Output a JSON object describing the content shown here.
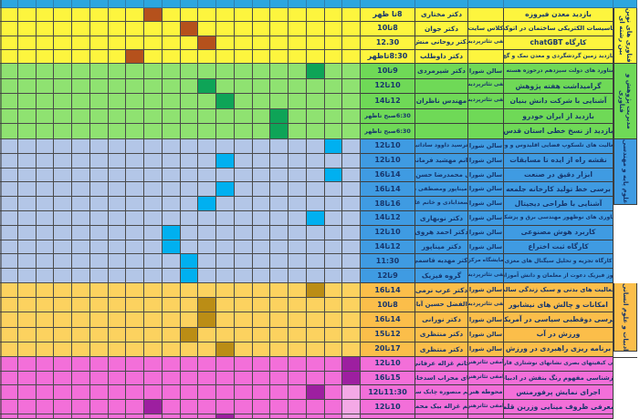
{
  "app": {
    "type": "schedule-spreadsheet",
    "language": "fa",
    "direction": "rtl"
  },
  "header": {
    "bg": "#2CA6DF"
  },
  "grid": {
    "columns": 20
  },
  "layout_colors": {
    "line": "#4a4a4a",
    "text": "#16356b",
    "edge": "#ffffff"
  },
  "sections": [
    {
      "label": "فناوری های نوین بین رشته ای",
      "colors": {
        "grid": "#FDF53E",
        "panel": "#FDF53E",
        "hl": "#B5511C"
      },
      "rows": [
        {
          "title": "بازدید معدن فیروزه",
          "location": "",
          "presenter": "دکتر مختاری",
          "time": "8تا ظهر",
          "highlights": [
            {
              "col": 8,
              "shade": "dark"
            }
          ]
        },
        {
          "title": "تاسیسات الکتریکی ساختمان در اتوکد",
          "location": "کلاس سایت",
          "presenter": "دکتر جوان",
          "time": "8تا10",
          "highlights": [
            {
              "col": 10,
              "shade": "dark"
            }
          ]
        },
        {
          "title": "کارگاه chatGBT",
          "location": "امفی تئاترپردیس",
          "presenter": "دکتر روحانی منش",
          "time": "12.30",
          "highlights": [
            {
              "col": 11,
              "shade": "dark"
            }
          ]
        },
        {
          "title": "بازدید زمین گردشگردی و معدن نمک و گچ",
          "location": "",
          "presenter": "دکتر داوطلب",
          "time": "8:30تاظهر",
          "highlights": [
            {
              "col": 7,
              "shade": "dark"
            }
          ]
        }
      ]
    },
    {
      "label": "مدیریت پژوهش و فناوری",
      "colors": {
        "grid": "#8FE271",
        "panel": "#6FD957",
        "hl": "#0EA457"
      },
      "rows": [
        {
          "title": "دستاورد های دولت سیزدهم درحوزه هسته ای",
          "location": "سالن شورا",
          "presenter": "دکتر شیرمردی",
          "time": "9تا10",
          "highlights": [
            {
              "col": 17,
              "shade": "dark"
            }
          ]
        },
        {
          "title": "گرامیداشت هفته پژوهش",
          "location": "امفی تئاترپردیس",
          "presenter": "",
          "time": "10تا12",
          "highlights": [
            {
              "col": 11,
              "shade": "dark"
            }
          ]
        },
        {
          "title": "آشنایی با شرکت دانش بنیان",
          "location": "امفی تئاترپردیس",
          "presenter": "مهندس ناظران",
          "time": "12تا14",
          "highlights": [
            {
              "col": 12,
              "shade": "dark"
            }
          ]
        },
        {
          "title": "بازدید از ایران خودرو",
          "location": "",
          "presenter": "",
          "time": "6:30صبح تاظهر",
          "highlights": [
            {
              "col": 15,
              "shade": "dark"
            }
          ]
        },
        {
          "title": "بازدید از نسخ خطی استان قدس",
          "location": "",
          "presenter": "",
          "time": "6:30صبح تاظهر",
          "highlights": [
            {
              "col": 15,
              "shade": "dark"
            }
          ]
        }
      ]
    },
    {
      "label": "علوم پایه و مهندسی",
      "colors": {
        "grid": "#B3C6E7",
        "panel": "#3F9BE2",
        "hl": "#00B0F0"
      },
      "rows": [
        {
          "title": "فعالیت های تلسکوپ فضایی اقلیدوس و وب",
          "location": "سالن شورا",
          "presenter": "دکترسید داوود ساداتیان",
          "time": "10تا12",
          "highlights": [
            {
              "col": 18,
              "shade": "dark"
            }
          ]
        },
        {
          "title": "نقشه راه از ایده تا مسابقات",
          "location": "سالن شورا",
          "presenter": "خانم مهشید فرمانی",
          "time": "10تا12",
          "highlights": [
            {
              "col": 12,
              "shade": "dark"
            }
          ]
        },
        {
          "title": "ابزار دقیق در صنعت",
          "location": "سالن شورا",
          "presenter": "آقای محمدرضا حسن پور",
          "time": "14تا16",
          "highlights": [
            {
              "col": 18,
              "shade": "dark"
            }
          ]
        },
        {
          "title": "برسی خط تولید کارخانه جلمعه",
          "location": "سالن شورا",
          "presenter": "دکتر میناپور ومصطفی دادور",
          "time": "14تا16",
          "highlights": [
            {
              "col": 12,
              "shade": "dark"
            }
          ]
        },
        {
          "title": "آشنایی با طراحی دیجیتال",
          "location": "سالن شورا",
          "presenter": "آقای سعدابادی و خانم عابدینی",
          "time": "16تا18",
          "highlights": [
            {
              "col": 11,
              "shade": "dark"
            }
          ]
        },
        {
          "title": "فناوری های نوظهور مهندسی برق و پزشکی",
          "location": "سالن شورا",
          "presenter": "دکتر نوبهاری",
          "time": "12تا14",
          "highlights": [
            {
              "col": 17,
              "shade": "dark"
            }
          ]
        },
        {
          "title": "کاربرد هوش مصنوعی",
          "location": "سالن شورا",
          "presenter": "دکتر احمد هروی",
          "time": "10تا12",
          "highlights": [
            {
              "col": 9,
              "shade": "dark"
            }
          ]
        },
        {
          "title": "کارگاه ثبت اختراع",
          "location": "سالن شورا",
          "presenter": "دکتر میناپور",
          "time": "12تا14",
          "highlights": [
            {
              "col": 9,
              "shade": "dark"
            }
          ]
        },
        {
          "title": "کارگاه تجزیه و تحلیل سیگنال های مغزی",
          "location": "آزمایشگاه مرکزی",
          "presenter": "دکتر مهدیه قاسمی",
          "time": "11:30",
          "highlights": [
            {
              "col": 10,
              "shade": "dark"
            }
          ]
        },
        {
          "title": "روز فیزیک دعوت از معلمان و دانش آموزان",
          "location": "امفی تئاترپردیس",
          "presenter": "گروه فیزیک",
          "time": "9تا12",
          "highlights": [
            {
              "col": 10,
              "shade": "dark"
            }
          ]
        }
      ]
    },
    {
      "label": "ادبیات و علوم انسانی",
      "colors": {
        "grid": "#FCD25F",
        "panel": "#FBBE4A",
        "hl": "#BB8D15"
      },
      "rows": [
        {
          "title": "فعالیت های بدنی و سبک زندگی سالم",
          "location": "سالن شورا",
          "presenter": "دکتر عرب نرمی",
          "time": "14تا16",
          "highlights": [
            {
              "col": 17,
              "shade": "dark"
            }
          ]
        },
        {
          "title": "امکانات و چالش های نیشابور",
          "location": "امفی تئاترپردیس",
          "presenter": "ابوالفضل حسین آبادی",
          "time": "8تا10",
          "highlights": [
            {
              "col": 11,
              "shade": "dark"
            }
          ]
        },
        {
          "title": "برسی دوقطبی سیاسی در آمریکا",
          "location": "سالن شورا",
          "presenter": "دکتر نورانی",
          "time": "14تا16",
          "highlights": [
            {
              "col": 11,
              "shade": "dark"
            }
          ]
        },
        {
          "title": "ورزش در آب",
          "location": "سالن شورا",
          "presenter": "دکتر منتظری",
          "time": "12تا15",
          "highlights": [
            {
              "col": 10,
              "shade": "dark"
            }
          ]
        },
        {
          "title": "برنامه ریزی راهبردی در ورزش",
          "location": "سالن شورا",
          "presenter": "دکتر منتظری",
          "time": "17تا20",
          "highlights": [
            {
              "col": 12,
              "shade": "dark"
            }
          ]
        }
      ]
    },
    {
      "label": "",
      "colors": {
        "grid": "#F36FD9",
        "panel": "#F36FD9",
        "hl": "#9D1FA0",
        "hl_light": "#F4A9E6"
      },
      "rows": [
        {
          "title": "برسی کیفیتهای بصری نشانهای نوشتاری فارسی",
          "location": "آمفی تئاترهنر",
          "presenter": "خانم غزاله عرفانی",
          "time": "10تا12",
          "highlights": [
            {
              "col": 19,
              "shade": "dark"
            }
          ]
        },
        {
          "title": "بازشناسی مفهوم رنگ بنفش در ادبیات",
          "location": "امفی تئاترهنر",
          "presenter": "آقای محراب اسدخانی",
          "time": "15تا16",
          "highlights": [
            {
              "col": 19,
              "shade": "dark"
            }
          ]
        },
        {
          "title": "اجرای نمایش پرفورمنس",
          "location": "محوطه هنر",
          "presenter": "خانم منصوره چابک سوار",
          "time": "11:30تا12",
          "highlights": [
            {
              "col": 17,
              "shade": "dark"
            },
            {
              "col": 19,
              "shade": "light"
            }
          ]
        },
        {
          "title": "معرفی ظروف مینایی وزرین قلم",
          "location": "امفی تئاترهنر",
          "presenter": "خانم غزاله بیک محمدی",
          "time": "10تا12",
          "highlights": [
            {
              "col": 8,
              "shade": "dark"
            },
            {
              "col": 19,
              "shade": "light"
            }
          ]
        },
        {
          "title": "",
          "location": "",
          "presenter": "",
          "time": "",
          "partial": true,
          "highlights": [
            {
              "col": 12,
              "shade": "dark"
            },
            {
              "col": 19,
              "shade": "light"
            }
          ]
        }
      ]
    }
  ]
}
